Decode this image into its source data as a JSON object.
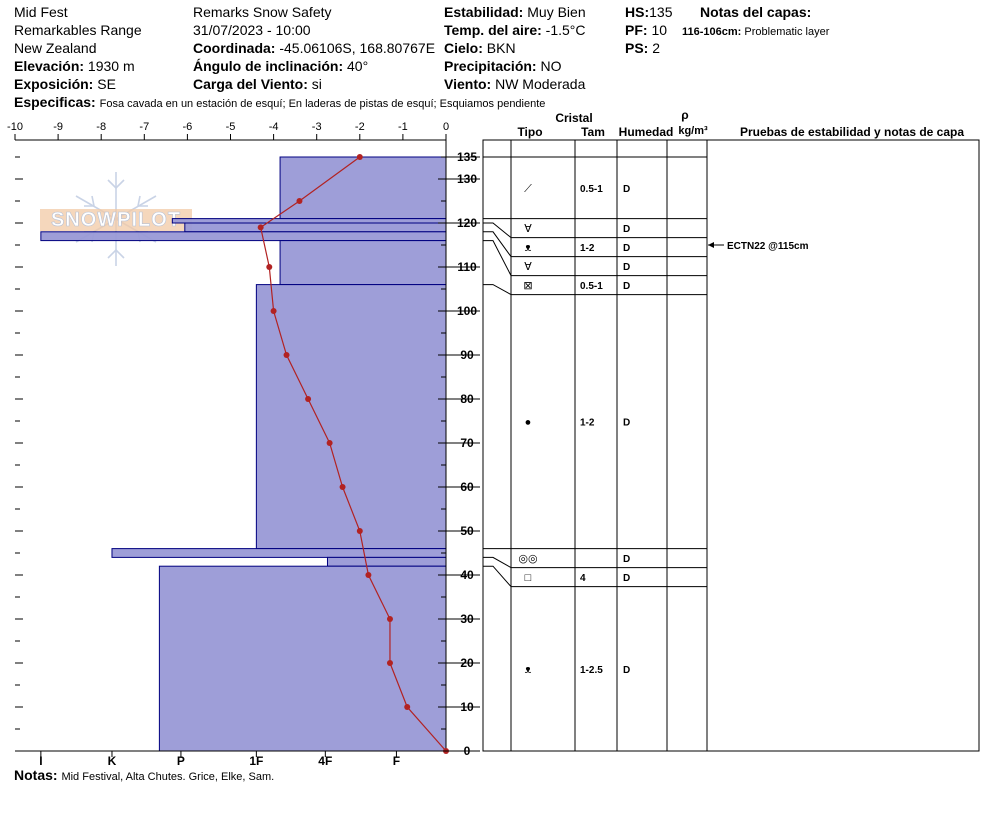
{
  "header": {
    "col1": [
      "Mid Fest",
      "Remarkables Range",
      "New Zealand"
    ],
    "elevation_label": "Elevación:",
    "elevation_value": "1930 m",
    "exposure_label": "Exposición:",
    "exposure_value": "SE",
    "organization": "Remarks Snow Safety",
    "datetime": "31/07/2023 - 10:00",
    "coord_label": "Coordinada:",
    "coord_value": "-45.06106S, 168.80767E",
    "incline_label": "Ángulo de inclinación:",
    "incline_value": "40°",
    "wind_load_label": "Carga del Viento:",
    "wind_load_value": "si",
    "stability_label": "Estabilidad:",
    "stability_value": "Muy Bien",
    "air_temp_label": "Temp. del aire:",
    "air_temp_value": "-1.5°C",
    "sky_label": "Cielo:",
    "sky_value": "BKN",
    "precip_label": "Precipitación:",
    "precip_value": "NO",
    "wind_label": "Viento:",
    "wind_value": "NW Moderada",
    "hs_label": "HS:",
    "hs_value": "135",
    "pf_label": "PF:",
    "pf_value": "10",
    "ps_label": "PS:",
    "ps_value": "2",
    "layer_notes_label": "Notas del capas:",
    "layer_note_range": "116-106cm:",
    "layer_note_text": "Problematic layer",
    "specifics_label": "Especificas:",
    "specifics_text": "Fosa cavada en un estación de esquí; En laderas de pistas de esquí; Esquiamos pendiente",
    "notes_label": "Notas:",
    "notes_text": "Mid Festival, Alta Chutes. Grice, Elke, Sam."
  },
  "watermark": "SNOWPILOT",
  "colors": {
    "hardness_fill": "#9999d6",
    "hardness_stroke": "#000080",
    "temperature": "#b22222"
  },
  "chart_data": {
    "type": "snow-profile",
    "temperature_axis": {
      "min": -10,
      "max": 0,
      "ticks": [
        -10,
        -9,
        -8,
        -7,
        -6,
        -5,
        -4,
        -3,
        -2,
        -1,
        0
      ]
    },
    "height_axis": {
      "min": 0,
      "max": 135,
      "ticks": [
        0,
        10,
        20,
        30,
        40,
        50,
        60,
        70,
        80,
        90,
        100,
        110,
        120,
        130,
        135
      ]
    },
    "hardness_ticks": [
      "I",
      "K",
      "P",
      "1F",
      "4F",
      "F"
    ],
    "hardness_scale_note": "hardness in relative units: F=0.1, 4F=0.3, 1F=0.5, P=0.7, K=0.85, I=1.0 of axis width",
    "layers": [
      {
        "top": 135,
        "bottom": 121,
        "hardness": "4F",
        "hardness_value": 0.385
      },
      {
        "top": 121,
        "bottom": 120,
        "hardness": "P",
        "hardness_value": 0.635
      },
      {
        "top": 120,
        "bottom": 118,
        "hardness": "P",
        "hardness_value": 0.606
      },
      {
        "top": 118,
        "bottom": 116,
        "hardness": "I",
        "hardness_value": 0.94
      },
      {
        "top": 116,
        "bottom": 106,
        "hardness": "4F",
        "hardness_value": 0.385
      },
      {
        "top": 106,
        "bottom": 46,
        "hardness": "1F",
        "hardness_value": 0.44
      },
      {
        "top": 46,
        "bottom": 44,
        "hardness": "K",
        "hardness_value": 0.775
      },
      {
        "top": 44,
        "bottom": 42,
        "hardness": "F",
        "hardness_value": 0.275
      },
      {
        "top": 42,
        "bottom": 0,
        "hardness": "P",
        "hardness_value": 0.665
      }
    ],
    "temperature_profile": [
      {
        "height": 135,
        "temp": -2.0
      },
      {
        "height": 125,
        "temp": -3.4
      },
      {
        "height": 119,
        "temp": -4.3
      },
      {
        "height": 110,
        "temp": -4.1
      },
      {
        "height": 100,
        "temp": -4.0
      },
      {
        "height": 90,
        "temp": -3.7
      },
      {
        "height": 80,
        "temp": -3.2
      },
      {
        "height": 70,
        "temp": -2.7
      },
      {
        "height": 60,
        "temp": -2.4
      },
      {
        "height": 50,
        "temp": -2.0
      },
      {
        "height": 40,
        "temp": -1.8
      },
      {
        "height": 30,
        "temp": -1.3
      },
      {
        "height": 20,
        "temp": -1.3
      },
      {
        "height": 10,
        "temp": -0.9
      },
      {
        "height": 0,
        "temp": 0.0
      }
    ]
  },
  "table": {
    "crystal_label": "Cristal",
    "type_label": "Tipo",
    "size_label": "Tam",
    "moisture_label": "Humedad",
    "density_symbol": "ρ",
    "density_unit": "kg/m³",
    "tests_label": "Pruebas de estabilidad y notas de capa",
    "rows": [
      {
        "top": 135,
        "bottom": 121,
        "symbol": "⟋",
        "size": "0.5-1",
        "moisture": "D"
      },
      {
        "top": 121,
        "bottom": 120,
        "symbol": "∀",
        "size": "",
        "moisture": "D"
      },
      {
        "top": 120,
        "bottom": 118,
        "symbol": "ᴥ",
        "size": "1-2",
        "moisture": "D"
      },
      {
        "top": 118,
        "bottom": 116,
        "symbol": "∀",
        "size": "",
        "moisture": "D"
      },
      {
        "top": 116,
        "bottom": 106,
        "symbol": "⊠",
        "size": "0.5-1",
        "moisture": "D"
      },
      {
        "top": 106,
        "bottom": 46,
        "symbol": "●",
        "size": "1-2",
        "moisture": "D"
      },
      {
        "top": 46,
        "bottom": 44,
        "symbol": "◎◎",
        "size": "",
        "moisture": "D"
      },
      {
        "top": 44,
        "bottom": 42,
        "symbol": "□",
        "size": "4",
        "moisture": "D"
      },
      {
        "top": 42,
        "bottom": 0,
        "symbol": "ᴥ",
        "size": "1-2.5",
        "moisture": "D"
      }
    ],
    "test_results": [
      {
        "height": 115,
        "text": "ECTN22 @115cm"
      }
    ]
  }
}
